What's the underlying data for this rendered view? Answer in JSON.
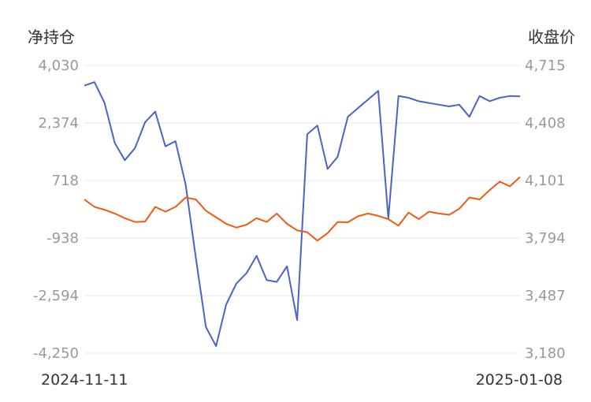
{
  "chart_data": {
    "type": "line",
    "left_axis_title": "净持仓",
    "right_axis_title": "收盘价",
    "left_ticks": [
      "4,030",
      "2,374",
      "718",
      "-938",
      "-2,594",
      "-4,250"
    ],
    "right_ticks": [
      "4,715",
      "4,408",
      "4,101",
      "3,794",
      "3,487",
      "3,180"
    ],
    "left_range": [
      -4250,
      4030
    ],
    "right_range": [
      3180,
      4715
    ],
    "x_start_label": "2024-11-11",
    "x_end_label": "2025-01-08",
    "grid": true,
    "colors": {
      "net_position": "#4a63c6",
      "close_price": "#f25a12"
    },
    "series": [
      {
        "axis": "left",
        "values": [
          3450,
          3550,
          2950,
          1800,
          1300,
          1650,
          2400,
          2700,
          1700,
          1850,
          600,
          -1500,
          -3500,
          -4050,
          -2850,
          -2250,
          -1950,
          -1450,
          -2150,
          -2200,
          -1750,
          -3300,
          2050,
          2300,
          1050,
          1400,
          2550,
          2800,
          3050,
          3300,
          -380,
          3150,
          3100,
          3000,
          2950,
          2900,
          2850,
          2900,
          2550,
          3150,
          3000,
          3100,
          3150,
          3140
        ]
      },
      {
        "axis": "right",
        "values": [
          4000,
          3960,
          3945,
          3925,
          3900,
          3880,
          3882,
          3960,
          3935,
          3960,
          4010,
          4000,
          3940,
          3905,
          3870,
          3850,
          3865,
          3900,
          3880,
          3925,
          3870,
          3835,
          3825,
          3780,
          3820,
          3880,
          3878,
          3910,
          3925,
          3912,
          3895,
          3860,
          3930,
          3895,
          3935,
          3925,
          3918,
          3950,
          4010,
          4000,
          4050,
          4095,
          4070,
          4120
        ]
      }
    ]
  }
}
